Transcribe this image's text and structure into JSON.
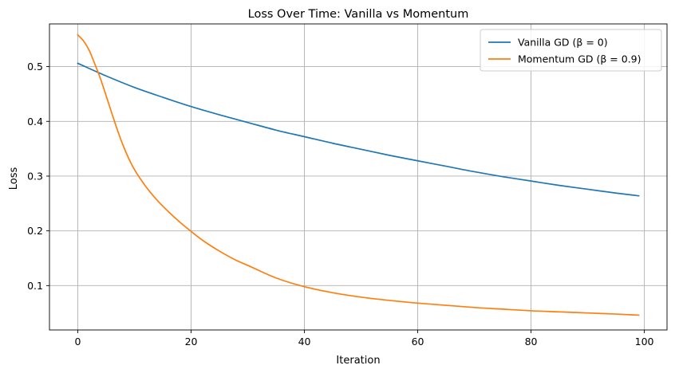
{
  "chart_data": {
    "type": "line",
    "title": "Loss Over Time: Vanilla vs Momentum",
    "xlabel": "Iteration",
    "ylabel": "Loss",
    "xlim": [
      -5,
      104
    ],
    "ylim": [
      0.019,
      0.578
    ],
    "xticks": [
      0,
      20,
      40,
      60,
      80,
      100
    ],
    "yticks": [
      0.1,
      0.2,
      0.3,
      0.4,
      0.5
    ],
    "grid": true,
    "legend_position": "top-right",
    "series": [
      {
        "name": "Vanilla GD (β = 0)",
        "color": "#1f77b4",
        "x": [
          0,
          5,
          10,
          15,
          20,
          25,
          30,
          35,
          40,
          45,
          50,
          55,
          60,
          65,
          70,
          75,
          80,
          85,
          90,
          95,
          99
        ],
        "y": [
          0.506,
          0.483,
          0.462,
          0.444,
          0.427,
          0.412,
          0.398,
          0.384,
          0.372,
          0.36,
          0.349,
          0.338,
          0.328,
          0.318,
          0.308,
          0.299,
          0.291,
          0.283,
          0.276,
          0.269,
          0.264
        ]
      },
      {
        "name": "Momentum GD (β = 0.9)",
        "color": "#ff7f0e",
        "x": [
          0,
          1,
          2,
          3,
          4,
          5,
          6,
          7,
          8,
          9,
          10,
          12,
          14,
          16,
          18,
          20,
          22,
          25,
          28,
          30,
          35,
          40,
          45,
          50,
          55,
          60,
          65,
          70,
          75,
          80,
          85,
          90,
          95,
          99
        ],
        "y": [
          0.558,
          0.547,
          0.53,
          0.505,
          0.478,
          0.447,
          0.415,
          0.384,
          0.356,
          0.332,
          0.312,
          0.281,
          0.256,
          0.235,
          0.216,
          0.199,
          0.183,
          0.163,
          0.146,
          0.137,
          0.114,
          0.098,
          0.087,
          0.079,
          0.073,
          0.068,
          0.064,
          0.06,
          0.057,
          0.054,
          0.052,
          0.05,
          0.048,
          0.046
        ]
      }
    ]
  }
}
